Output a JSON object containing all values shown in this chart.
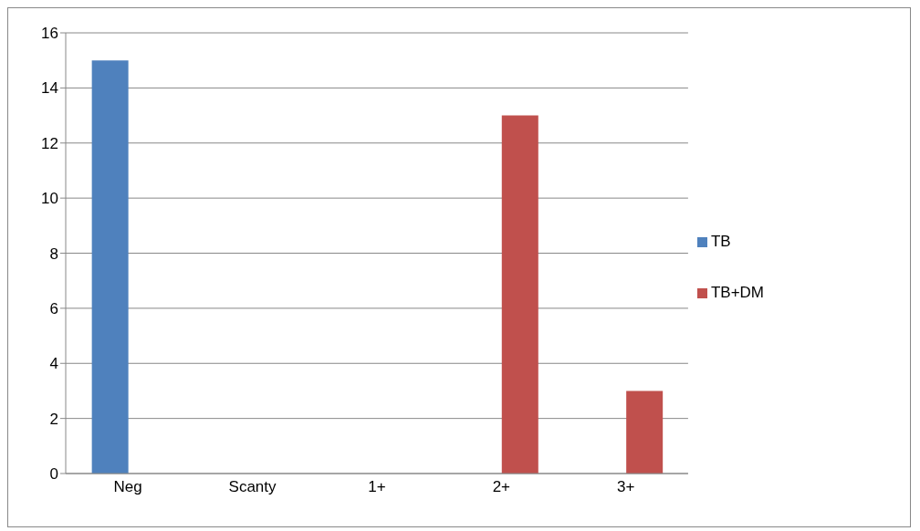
{
  "chart_data": {
    "type": "bar",
    "categories": [
      "Neg",
      "Scanty",
      "1+",
      "2+",
      "3+"
    ],
    "series": [
      {
        "name": "TB",
        "color": "#4f81bd",
        "values": [
          15,
          0,
          0,
          0,
          0
        ]
      },
      {
        "name": "TB+DM",
        "color": "#c0504d",
        "values": [
          0,
          0,
          0,
          13,
          3
        ]
      }
    ],
    "ylim": [
      0,
      16
    ],
    "yticks": [
      0,
      2,
      4,
      6,
      8,
      10,
      12,
      14,
      16
    ],
    "grid": "y",
    "legend": "right"
  }
}
